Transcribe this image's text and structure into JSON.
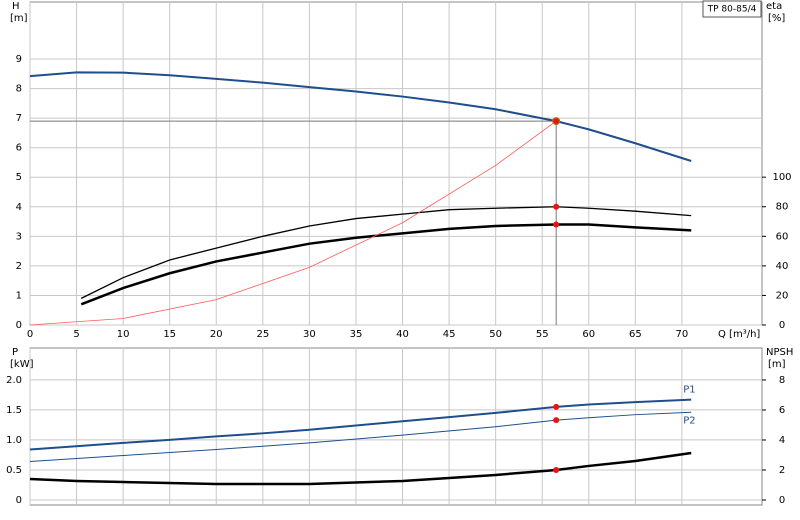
{
  "chart_data": [
    {
      "type": "line",
      "title": "TP 80-85/4",
      "y_label": "H",
      "y_unit": "[m]",
      "y2_label": "eta",
      "y2_unit": "[%]",
      "x_label": "Q [m³/h]",
      "xlim": [
        0,
        78.6
      ],
      "xticks": [
        0,
        5,
        10,
        15,
        20,
        25,
        30,
        35,
        40,
        45,
        50,
        55,
        60,
        65,
        70
      ],
      "ylim": [
        0,
        10.93
      ],
      "yticks": [
        0,
        1,
        2,
        3,
        4,
        5,
        6,
        7,
        8,
        9
      ],
      "y2lim": [
        0,
        218.5
      ],
      "y2ticks": [
        0,
        20,
        40,
        60,
        80,
        100
      ],
      "grid": true,
      "show_x_labels": true,
      "duty_x": 56.5,
      "duty_color": "#ffd21f",
      "series": [
        {
          "color": "#1f4e8c",
          "width": 2,
          "x": [
            0,
            5,
            10,
            15,
            20,
            25,
            30,
            35,
            40,
            45,
            50,
            56.5,
            60,
            65,
            71
          ],
          "values": [
            8.42,
            8.55,
            8.54,
            8.45,
            8.33,
            8.2,
            8.05,
            7.9,
            7.73,
            7.53,
            7.3,
            6.9,
            6.62,
            6.15,
            5.55
          ],
          "duty": true
        },
        {
          "color": "#000000",
          "width": 1.3,
          "axis": "y2",
          "x": [
            5.5,
            10,
            15,
            20,
            25,
            30,
            35,
            40,
            45,
            50,
            56.5,
            60,
            65,
            71
          ],
          "values": [
            18,
            32,
            44,
            52,
            60,
            67,
            72,
            75,
            78,
            79,
            80,
            79,
            77,
            74
          ]
        },
        {
          "color": "#000000",
          "width": 2.5,
          "axis": "y2",
          "x": [
            5.5,
            10,
            15,
            20,
            25,
            30,
            35,
            40,
            45,
            50,
            56.5,
            60,
            65,
            71
          ],
          "values": [
            14,
            25,
            35,
            43,
            49,
            55,
            59,
            62,
            65,
            67,
            68,
            68,
            66,
            64
          ]
        },
        {
          "color": "#ff5a5a",
          "width": 0.8,
          "x": [
            0,
            10,
            20,
            30,
            40,
            50,
            56.5
          ],
          "values": [
            0,
            0.22,
            0.86,
            1.95,
            3.46,
            5.4,
            6.9
          ]
        }
      ]
    },
    {
      "type": "line",
      "y_label": "P",
      "y_unit": "[kW]",
      "y2_label": "NPSH",
      "y2_unit": "[m]",
      "xlim": [
        0,
        78.6
      ],
      "xticks": [
        0,
        5,
        10,
        15,
        20,
        25,
        30,
        35,
        40,
        45,
        50,
        55,
        60,
        65,
        70
      ],
      "ylim": [
        0,
        2.53
      ],
      "yticks": [
        0,
        {
          "value": 0.5,
          "label": "0.5"
        },
        {
          "value": 1,
          "label": "1.0"
        },
        {
          "value": 1.5,
          "label": "1.5"
        },
        {
          "value": 2,
          "label": "2.0"
        }
      ],
      "y2lim": [
        0,
        10.13
      ],
      "y2ticks": [
        0,
        2,
        4,
        6,
        8
      ],
      "grid": true,
      "show_x_labels": false,
      "duty_x": 56.5,
      "series": [
        {
          "name": "P1",
          "color": "#1f4e8c",
          "width": 2,
          "x": [
            0,
            5.5,
            10,
            15,
            20,
            25,
            30,
            35,
            40,
            45,
            50,
            56.5,
            60,
            65,
            71
          ],
          "values": [
            0.84,
            0.9,
            0.95,
            1.0,
            1.06,
            1.11,
            1.17,
            1.24,
            1.31,
            1.38,
            1.45,
            1.55,
            1.59,
            1.63,
            1.67
          ]
        },
        {
          "name": "P2",
          "color": "#1f4e8c",
          "width": 1,
          "x": [
            0,
            10,
            20,
            30,
            40,
            50,
            56.5,
            60,
            65,
            71
          ],
          "values": [
            0.64,
            0.74,
            0.84,
            0.95,
            1.08,
            1.22,
            1.33,
            1.37,
            1.42,
            1.46
          ]
        },
        {
          "color": "#000000",
          "width": 2.5,
          "axis": "y2",
          "x": [
            0,
            5,
            10,
            20,
            30,
            40,
            50,
            56.5,
            60,
            65,
            71
          ],
          "values": [
            1.4,
            1.27,
            1.2,
            1.07,
            1.07,
            1.27,
            1.67,
            2.0,
            2.27,
            2.6,
            3.13
          ]
        }
      ]
    }
  ]
}
